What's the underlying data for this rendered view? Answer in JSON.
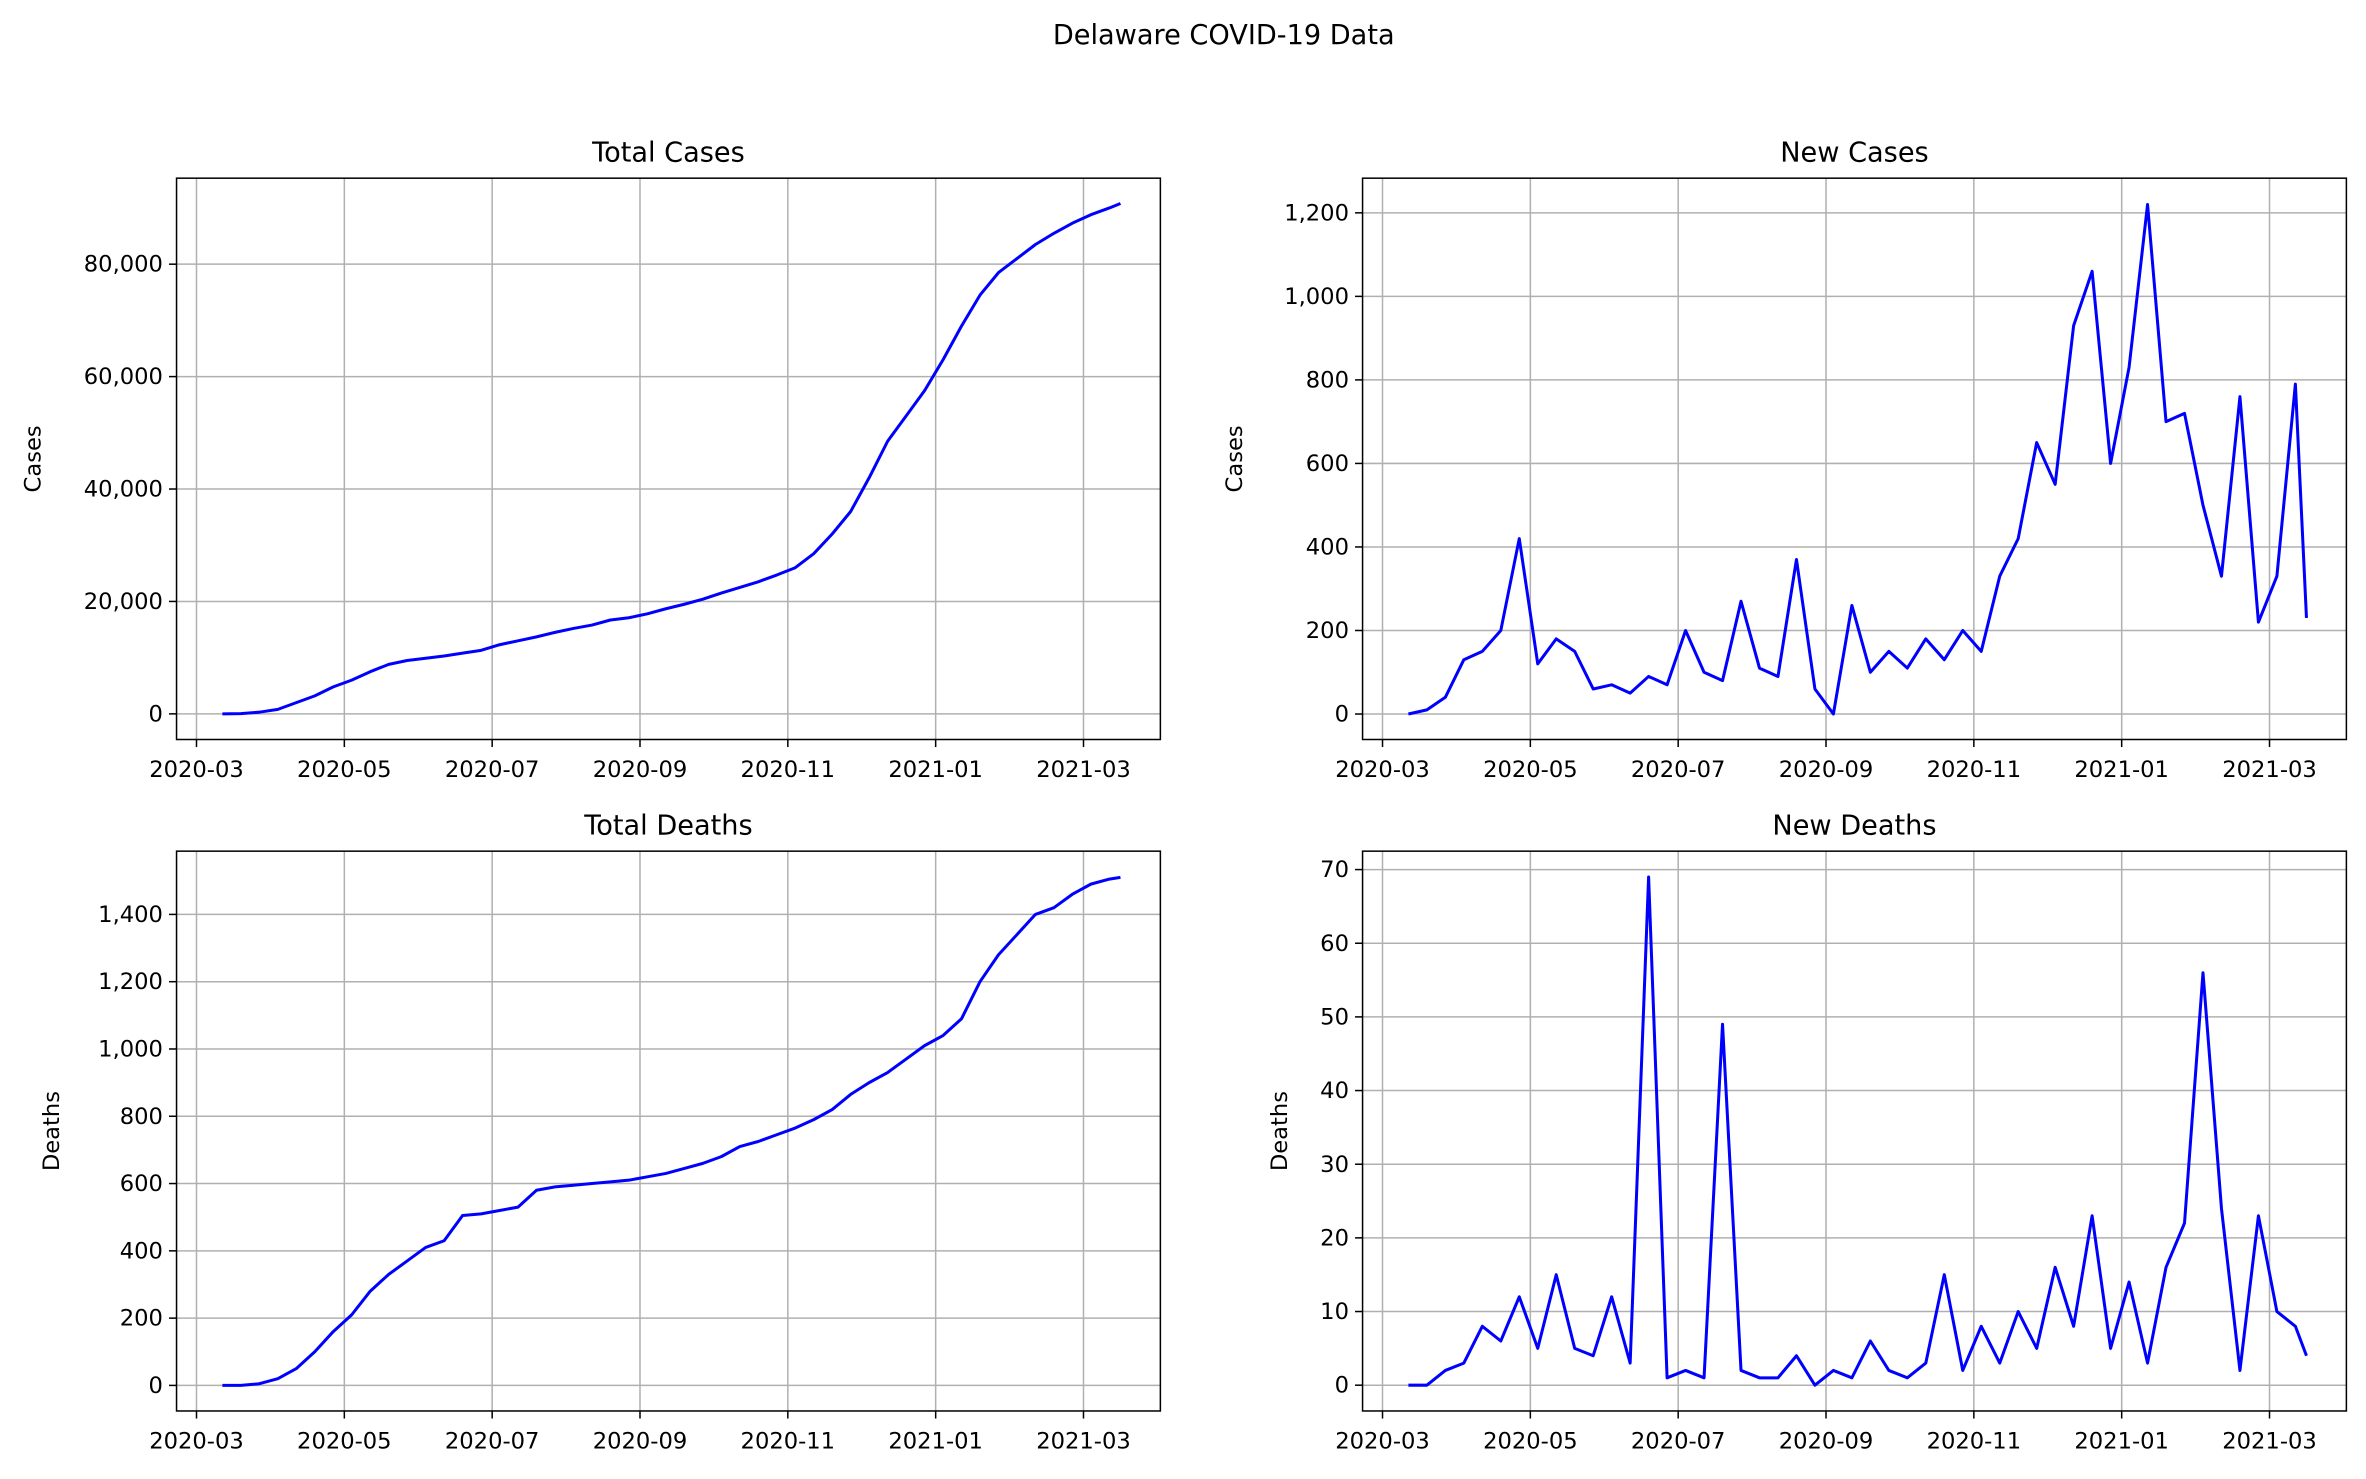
{
  "title": "Delaware COVID-19 Data",
  "chart_data": [
    {
      "type": "line",
      "title": "Total Cases",
      "y_label": "Cases",
      "color": "#0000ff",
      "grid": true,
      "x": [
        3.35,
        3.6,
        3.85,
        4.1,
        4.35,
        4.6,
        4.85,
        5.1,
        5.35,
        5.6,
        5.85,
        6.1,
        6.35,
        6.6,
        6.85,
        7.1,
        7.35,
        7.6,
        7.85,
        8.1,
        8.35,
        8.6,
        8.85,
        9.1,
        9.35,
        9.6,
        9.85,
        10.1,
        10.35,
        10.6,
        10.85,
        11.1,
        11.35,
        11.6,
        11.85,
        12.1,
        12.35,
        12.6,
        12.85,
        13.1,
        13.35,
        13.6,
        13.85,
        14.1,
        14.35,
        14.6,
        14.85,
        15.1,
        15.35,
        15.5
      ],
      "values": [
        0,
        50,
        300,
        800,
        2000,
        3200,
        4800,
        6000,
        7500,
        8800,
        9500,
        9900,
        10300,
        10800,
        11300,
        12300,
        13000,
        13700,
        14500,
        15200,
        15800,
        16700,
        17100,
        17800,
        18700,
        19500,
        20400,
        21500,
        22500,
        23500,
        24700,
        26000,
        28500,
        32000,
        36000,
        42000,
        48500,
        53000,
        57500,
        63000,
        69000,
        74500,
        78500,
        81000,
        83500,
        85500,
        87300,
        88800,
        90000,
        90800
      ],
      "xlim": [
        2.73,
        16.04
      ],
      "xticks": [
        {
          "value": 3,
          "label": "2020-03"
        },
        {
          "value": 5,
          "label": "2020-05"
        },
        {
          "value": 7,
          "label": "2020-07"
        },
        {
          "value": 9,
          "label": "2020-09"
        },
        {
          "value": 11,
          "label": "2020-11"
        },
        {
          "value": 13,
          "label": "2021-01"
        },
        {
          "value": 15,
          "label": "2021-03"
        }
      ],
      "ylim": [
        -4560,
        95300
      ],
      "yticks": [
        0,
        {
          "value": 20000,
          "label": "20,000"
        },
        {
          "value": 40000,
          "label": "40,000"
        },
        {
          "value": 60000,
          "label": "60,000"
        },
        {
          "value": 80000,
          "label": "80,000"
        }
      ]
    },
    {
      "type": "line",
      "title": "New Cases",
      "y_label": "Cases",
      "color": "#0000ff",
      "grid": true,
      "x": [
        3.35,
        3.6,
        3.85,
        4.1,
        4.35,
        4.6,
        4.85,
        5.1,
        5.35,
        5.6,
        5.85,
        6.1,
        6.35,
        6.6,
        6.85,
        7.1,
        7.35,
        7.6,
        7.85,
        8.1,
        8.35,
        8.6,
        8.85,
        9.1,
        9.35,
        9.6,
        9.85,
        10.1,
        10.35,
        10.6,
        10.85,
        11.1,
        11.35,
        11.6,
        11.85,
        12.1,
        12.35,
        12.6,
        12.85,
        13.1,
        13.35,
        13.6,
        13.85,
        14.1,
        14.35,
        14.6,
        14.85,
        15.1,
        15.35,
        15.5
      ],
      "values": [
        0,
        10,
        40,
        130,
        150,
        200,
        420,
        120,
        180,
        150,
        60,
        70,
        50,
        90,
        70,
        200,
        100,
        80,
        270,
        110,
        90,
        370,
        60,
        0,
        260,
        100,
        150,
        110,
        180,
        130,
        200,
        150,
        330,
        420,
        650,
        550,
        930,
        1060,
        600,
        830,
        1220,
        700,
        720,
        500,
        330,
        760,
        220,
        330,
        790,
        230
      ],
      "xlim": [
        2.73,
        16.04
      ],
      "xticks": [
        {
          "value": 3,
          "label": "2020-03"
        },
        {
          "value": 5,
          "label": "2020-05"
        },
        {
          "value": 7,
          "label": "2020-07"
        },
        {
          "value": 9,
          "label": "2020-09"
        },
        {
          "value": 11,
          "label": "2020-11"
        },
        {
          "value": 13,
          "label": "2021-01"
        },
        {
          "value": 15,
          "label": "2021-03"
        }
      ],
      "ylim": [
        -61,
        1283
      ],
      "yticks": [
        0,
        200,
        400,
        600,
        800,
        {
          "value": 1000,
          "label": "1,000"
        },
        {
          "value": 1200,
          "label": "1,200"
        }
      ]
    },
    {
      "type": "line",
      "title": "Total Deaths",
      "y_label": "Deaths",
      "color": "#0000ff",
      "grid": true,
      "x": [
        3.35,
        3.6,
        3.85,
        4.1,
        4.35,
        4.6,
        4.85,
        5.1,
        5.35,
        5.6,
        5.85,
        6.1,
        6.35,
        6.6,
        6.85,
        7.1,
        7.35,
        7.6,
        7.85,
        8.1,
        8.35,
        8.6,
        8.85,
        9.1,
        9.35,
        9.6,
        9.85,
        10.1,
        10.35,
        10.6,
        10.85,
        11.1,
        11.35,
        11.6,
        11.85,
        12.1,
        12.35,
        12.6,
        12.85,
        13.1,
        13.35,
        13.6,
        13.85,
        14.1,
        14.35,
        14.6,
        14.85,
        15.1,
        15.35,
        15.5
      ],
      "values": [
        0,
        0,
        5,
        20,
        50,
        100,
        160,
        210,
        280,
        330,
        370,
        410,
        430,
        505,
        510,
        520,
        530,
        580,
        590,
        595,
        600,
        605,
        610,
        620,
        630,
        645,
        660,
        680,
        710,
        725,
        745,
        765,
        790,
        820,
        865,
        900,
        930,
        970,
        1010,
        1040,
        1090,
        1200,
        1280,
        1340,
        1400,
        1420,
        1460,
        1490,
        1505,
        1510
      ],
      "xlim": [
        2.73,
        16.04
      ],
      "xticks": [
        {
          "value": 3,
          "label": "2020-03"
        },
        {
          "value": 5,
          "label": "2020-05"
        },
        {
          "value": 7,
          "label": "2020-07"
        },
        {
          "value": 9,
          "label": "2020-09"
        },
        {
          "value": 11,
          "label": "2020-11"
        },
        {
          "value": 13,
          "label": "2021-01"
        },
        {
          "value": 15,
          "label": "2021-03"
        }
      ],
      "ylim": [
        -76,
        1588
      ],
      "yticks": [
        0,
        200,
        400,
        600,
        800,
        {
          "value": 1000,
          "label": "1,000"
        },
        {
          "value": 1200,
          "label": "1,200"
        },
        {
          "value": 1400,
          "label": "1,400"
        }
      ]
    },
    {
      "type": "line",
      "title": "New Deaths",
      "y_label": "Deaths",
      "color": "#0000ff",
      "grid": true,
      "x": [
        3.35,
        3.6,
        3.85,
        4.1,
        4.35,
        4.6,
        4.85,
        5.1,
        5.35,
        5.6,
        5.85,
        6.1,
        6.35,
        6.6,
        6.85,
        7.1,
        7.35,
        7.6,
        7.85,
        8.1,
        8.35,
        8.6,
        8.85,
        9.1,
        9.35,
        9.6,
        9.85,
        10.1,
        10.35,
        10.6,
        10.85,
        11.1,
        11.35,
        11.6,
        11.85,
        12.1,
        12.35,
        12.6,
        12.85,
        13.1,
        13.35,
        13.6,
        13.85,
        14.1,
        14.35,
        14.6,
        14.85,
        15.1,
        15.35,
        15.5
      ],
      "values": [
        0,
        0,
        2,
        3,
        8,
        6,
        12,
        5,
        15,
        5,
        4,
        12,
        3,
        69,
        1,
        2,
        1,
        49,
        2,
        1,
        1,
        4,
        0,
        2,
        1,
        6,
        2,
        1,
        3,
        15,
        2,
        8,
        3,
        10,
        5,
        16,
        8,
        23,
        5,
        14,
        3,
        16,
        22,
        56,
        24,
        2,
        23,
        10,
        8,
        4
      ],
      "xlim": [
        2.73,
        16.04
      ],
      "xticks": [
        {
          "value": 3,
          "label": "2020-03"
        },
        {
          "value": 5,
          "label": "2020-05"
        },
        {
          "value": 7,
          "label": "2020-07"
        },
        {
          "value": 9,
          "label": "2020-09"
        },
        {
          "value": 11,
          "label": "2020-11"
        },
        {
          "value": 13,
          "label": "2021-01"
        },
        {
          "value": 15,
          "label": "2021-03"
        }
      ],
      "ylim": [
        -3.5,
        72.5
      ],
      "yticks": [
        0,
        10,
        20,
        30,
        40,
        50,
        60,
        70
      ]
    }
  ]
}
